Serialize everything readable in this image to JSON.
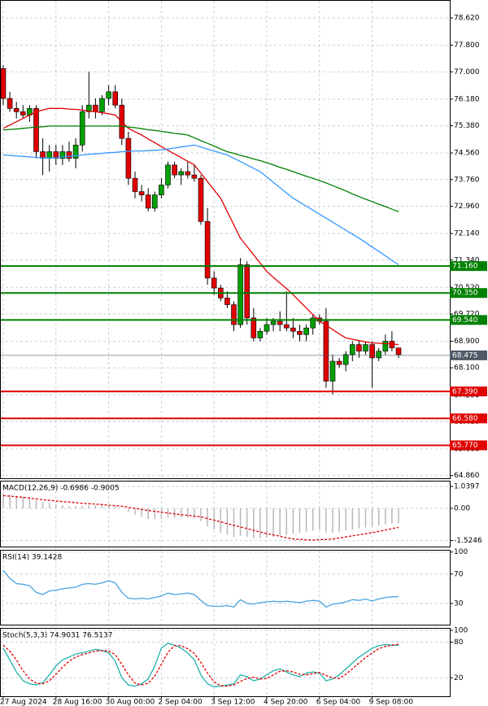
{
  "chart_data": [
    {
      "type": "candlestick",
      "open": [
        77.1,
        76.2,
        75.9,
        75.8,
        75.7,
        75.9,
        74.6,
        74.4,
        74.6,
        74.4,
        74.6,
        74.4,
        74.8,
        75.8,
        76.0,
        75.8,
        76.2,
        76.4,
        76.0,
        75.0,
        73.8,
        73.4,
        73.3,
        72.9,
        73.3,
        73.6,
        74.2,
        73.9,
        74.0,
        73.9,
        73.8,
        72.5,
        70.8,
        70.5,
        70.2,
        70.0,
        69.4,
        71.2,
        69.6,
        69.0,
        69.2,
        69.4,
        69.5,
        69.4,
        69.3,
        69.2,
        69.1,
        69.3,
        69.6,
        69.5,
        67.7,
        68.3,
        68.2,
        68.5,
        68.8,
        68.6,
        68.8,
        68.4,
        68.6,
        68.9,
        68.7
      ],
      "high": [
        77.2,
        76.4,
        76.1,
        76.0,
        76.0,
        76.0,
        75.0,
        74.8,
        74.8,
        74.8,
        74.9,
        75.0,
        76.0,
        77.0,
        76.2,
        76.3,
        76.6,
        76.6,
        76.2,
        75.2,
        74.0,
        73.6,
        73.5,
        73.4,
        73.8,
        74.3,
        74.3,
        74.1,
        74.3,
        74.2,
        73.9,
        72.9,
        71.0,
        70.6,
        70.4,
        70.1,
        71.4,
        71.3,
        69.9,
        69.3,
        69.6,
        69.6,
        69.8,
        70.4,
        69.6,
        69.4,
        69.4,
        69.7,
        69.7,
        69.9,
        68.5,
        68.4,
        68.6,
        68.9,
        68.9,
        68.9,
        68.9,
        68.7,
        69.1,
        69.2,
        68.7
      ],
      "low": [
        76.0,
        75.8,
        75.6,
        75.6,
        75.5,
        74.4,
        73.9,
        74.0,
        74.2,
        74.2,
        74.3,
        74.1,
        74.6,
        75.6,
        75.6,
        75.7,
        76.0,
        75.9,
        74.8,
        73.6,
        73.2,
        73.1,
        72.8,
        72.8,
        73.2,
        73.5,
        73.8,
        73.6,
        73.8,
        73.7,
        72.4,
        70.6,
        70.3,
        70.1,
        69.9,
        69.2,
        69.3,
        69.4,
        68.9,
        68.9,
        69.1,
        69.2,
        69.2,
        69.2,
        69.0,
        68.9,
        68.9,
        69.1,
        69.4,
        67.5,
        67.3,
        68.1,
        68.0,
        68.3,
        68.4,
        68.5,
        67.5,
        68.3,
        68.5,
        68.6,
        68.4
      ],
      "close": [
        76.2,
        75.9,
        75.8,
        75.7,
        75.9,
        74.6,
        74.4,
        74.6,
        74.4,
        74.6,
        74.4,
        74.8,
        75.8,
        76.0,
        75.8,
        76.2,
        76.4,
        76.0,
        75.0,
        73.8,
        73.4,
        73.3,
        72.9,
        73.3,
        73.6,
        74.2,
        73.9,
        74.0,
        73.9,
        73.8,
        72.5,
        70.8,
        70.5,
        70.2,
        70.0,
        69.4,
        71.2,
        69.6,
        69.0,
        69.2,
        69.4,
        69.5,
        69.4,
        69.3,
        69.2,
        69.1,
        69.3,
        69.6,
        69.5,
        67.7,
        68.3,
        68.2,
        68.5,
        68.8,
        68.6,
        68.8,
        68.4,
        68.6,
        68.9,
        68.7,
        68.5
      ],
      "up_color": "#00a000",
      "down_color": "#e00000",
      "series": [
        {
          "color": "#e00000",
          "values": [
            75.3,
            75.4,
            75.5,
            75.6,
            75.7,
            75.8,
            75.85,
            75.9,
            75.9,
            75.9,
            75.88,
            75.87,
            75.85,
            75.82,
            75.8,
            75.77,
            75.74,
            75.7,
            75.5,
            75.3,
            75.2,
            75.1,
            74.98,
            74.87,
            74.75,
            74.64,
            74.53,
            74.42,
            74.31,
            74.2,
            73.95,
            73.7,
            73.45,
            73.2,
            72.8,
            72.4,
            72.0,
            71.75,
            71.5,
            71.25,
            71.0,
            70.82,
            70.65,
            70.48,
            70.3,
            70.1,
            69.9,
            69.7,
            69.5,
            69.38,
            69.25,
            69.12,
            69.0,
            68.96,
            68.92,
            68.88,
            68.85,
            68.84,
            68.83,
            68.82,
            68.8
          ]
        },
        {
          "color": "#3399ff",
          "values": [
            74.5,
            74.49,
            74.47,
            74.46,
            74.44,
            74.43,
            74.41,
            74.4,
            74.42,
            74.44,
            74.46,
            74.48,
            74.5,
            74.52,
            74.53,
            74.55,
            74.57,
            74.58,
            74.6,
            74.61,
            74.62,
            74.62,
            74.63,
            74.64,
            74.65,
            74.68,
            74.71,
            74.74,
            74.77,
            74.8,
            74.74,
            74.68,
            74.62,
            74.56,
            74.5,
            74.4,
            74.3,
            74.2,
            74.1,
            74.0,
            73.84,
            73.68,
            73.52,
            73.36,
            73.2,
            73.08,
            72.96,
            72.84,
            72.72,
            72.6,
            72.48,
            72.36,
            72.24,
            72.12,
            72.0,
            71.87,
            71.73,
            71.6,
            71.47,
            71.33,
            71.2
          ]
        },
        {
          "color": "#008000",
          "values": [
            75.25,
            75.27,
            75.28,
            75.3,
            75.32,
            75.34,
            75.35,
            75.37,
            75.37,
            75.37,
            75.37,
            75.37,
            75.37,
            75.37,
            75.37,
            75.37,
            75.37,
            75.37,
            75.37,
            75.34,
            75.32,
            75.29,
            75.26,
            75.24,
            75.21,
            75.18,
            75.15,
            75.13,
            75.1,
            75.02,
            74.93,
            74.85,
            74.77,
            74.68,
            74.6,
            74.55,
            74.49,
            74.44,
            74.38,
            74.33,
            74.27,
            74.2,
            74.13,
            74.07,
            74.0,
            73.93,
            73.86,
            73.8,
            73.73,
            73.66,
            73.58,
            73.5,
            73.42,
            73.33,
            73.25,
            73.17,
            73.1,
            73.02,
            72.95,
            72.87,
            72.8
          ]
        }
      ],
      "ylim": [
        64.78,
        79.16
      ],
      "yticks": [
        {
          "value": 78.62,
          "label": "78.620"
        },
        {
          "value": 77.8,
          "label": "77.800"
        },
        {
          "value": 77.0,
          "label": "77.000"
        },
        {
          "value": 76.18,
          "label": "76.180"
        },
        {
          "value": 75.38,
          "label": "75.380"
        },
        {
          "value": 74.56,
          "label": "74.560"
        },
        {
          "value": 73.76,
          "label": "73.760"
        },
        {
          "value": 72.96,
          "label": "72.960"
        },
        {
          "value": 72.14,
          "label": "72.140"
        },
        {
          "value": 71.34,
          "label": "71.340"
        },
        {
          "value": 70.52,
          "label": "70.520"
        },
        {
          "value": 69.72,
          "label": "69.720"
        },
        {
          "value": 68.9,
          "label": "68.900"
        },
        {
          "value": 68.1,
          "label": "68.100"
        },
        {
          "value": 67.28,
          "label": "67.280"
        },
        {
          "value": 66.48,
          "label": "66.480"
        },
        {
          "value": 65.66,
          "label": "65.660"
        },
        {
          "value": 64.86,
          "label": "64.860"
        }
      ],
      "levels": [
        {
          "value": 71.16,
          "label": "71.160",
          "color": "#008000"
        },
        {
          "value": 70.35,
          "label": "70.350",
          "color": "#008000"
        },
        {
          "value": 69.54,
          "label": "69.540",
          "color": "#008000"
        },
        {
          "value": 67.39,
          "label": "67.390",
          "color": "#e00000"
        },
        {
          "value": 66.58,
          "label": "66.580",
          "color": "#e00000"
        },
        {
          "value": 65.77,
          "label": "65.770",
          "color": "#e00000"
        }
      ],
      "current": {
        "value": 68.475,
        "label": "68.475",
        "color": "#505a66"
      },
      "grid": true
    },
    {
      "type": "macd",
      "title": "MACD(12,26,9) -0.6986 -0.9005",
      "color": "#b8b8b8",
      "values": [
        0.7,
        0.65,
        0.6,
        0.55,
        0.5,
        0.4,
        0.3,
        0.25,
        0.2,
        0.15,
        0.1,
        0.1,
        0.12,
        0.15,
        0.15,
        0.15,
        0.15,
        0.1,
        0.0,
        -0.15,
        -0.3,
        -0.4,
        -0.5,
        -0.5,
        -0.5,
        -0.45,
        -0.45,
        -0.45,
        -0.45,
        -0.45,
        -0.6,
        -0.85,
        -1.0,
        -1.15,
        -1.25,
        -1.35,
        -1.3,
        -1.35,
        -1.4,
        -1.4,
        -1.4,
        -1.35,
        -1.3,
        -1.25,
        -1.2,
        -1.15,
        -1.1,
        -1.05,
        -1.0,
        -1.15,
        -1.15,
        -1.1,
        -1.05,
        -1.0,
        -0.95,
        -0.9,
        -0.85,
        -0.8,
        -0.75,
        -0.72,
        -0.6986
      ],
      "series": [
        {
          "color": "#e00000",
          "dash": true,
          "values": [
            0.6,
            0.58,
            0.55,
            0.52,
            0.49,
            0.45,
            0.41,
            0.38,
            0.35,
            0.32,
            0.3,
            0.27,
            0.24,
            0.22,
            0.2,
            0.18,
            0.15,
            0.13,
            0.1,
            0.05,
            0.0,
            -0.05,
            -0.1,
            -0.14,
            -0.18,
            -0.22,
            -0.26,
            -0.3,
            -0.33,
            -0.37,
            -0.4,
            -0.48,
            -0.56,
            -0.64,
            -0.72,
            -0.8,
            -0.88,
            -0.96,
            -1.04,
            -1.12,
            -1.2,
            -1.26,
            -1.32,
            -1.39,
            -1.45,
            -1.47,
            -1.49,
            -1.5,
            -1.48,
            -1.47,
            -1.45,
            -1.4,
            -1.35,
            -1.3,
            -1.25,
            -1.2,
            -1.15,
            -1.09,
            -1.03,
            -0.96,
            -0.9005
          ]
        }
      ],
      "ylim": [
        -1.81,
        1.31
      ],
      "yticks": [
        1.0397,
        {
          "value": 0,
          "label": "0.00"
        },
        -1.5246
      ],
      "grid": true
    },
    {
      "type": "line",
      "title": "RSI(14) 39.1428",
      "series": [
        {
          "color": "#4aa3df",
          "values": [
            75,
            64,
            57,
            56,
            54,
            45,
            42,
            47,
            48,
            50,
            51,
            52,
            56,
            57,
            56,
            58,
            61,
            58,
            45,
            37,
            36,
            37,
            36,
            38,
            40,
            44,
            42,
            43,
            44,
            42,
            34,
            27,
            26,
            26,
            27,
            25,
            35,
            30,
            29,
            31,
            32,
            33,
            32,
            33,
            32,
            31,
            33,
            34,
            33,
            25,
            29,
            30,
            32,
            35,
            34,
            36,
            33,
            36,
            38,
            39,
            39.1428
          ]
        }
      ],
      "ylim": [
        1,
        103
      ],
      "yticks": [
        100,
        70,
        30
      ],
      "grid": true
    },
    {
      "type": "line",
      "title": "Stoch(5,3,3) 74.9031 76.5137",
      "series": [
        {
          "color": "#20b2aa",
          "values": [
            70,
            50,
            30,
            15,
            10,
            8,
            12,
            25,
            40,
            50,
            55,
            60,
            62,
            65,
            68,
            66,
            62,
            48,
            20,
            8,
            6,
            10,
            18,
            40,
            70,
            78,
            75,
            70,
            62,
            50,
            25,
            10,
            5,
            6,
            8,
            10,
            25,
            22,
            15,
            18,
            25,
            32,
            35,
            30,
            25,
            22,
            28,
            30,
            28,
            15,
            18,
            25,
            35,
            45,
            55,
            62,
            70,
            74,
            76,
            75,
            74.9031
          ]
        },
        {
          "color": "#e00000",
          "dash": true,
          "values": [
            75,
            65,
            50,
            32,
            18,
            11,
            10,
            15,
            26,
            38,
            48,
            55,
            59,
            62,
            65,
            66,
            65,
            59,
            43,
            25,
            11,
            8,
            11,
            23,
            43,
            63,
            74,
            74,
            69,
            61,
            46,
            28,
            13,
            7,
            6,
            8,
            14,
            19,
            21,
            18,
            19,
            25,
            31,
            32,
            30,
            26,
            25,
            27,
            29,
            24,
            20,
            19,
            26,
            35,
            45,
            54,
            62,
            69,
            73,
            75,
            76.5137
          ]
        }
      ],
      "ylim": [
        -11,
        104
      ],
      "yticks": [
        100,
        80,
        20
      ],
      "grid": true,
      "xticks": [
        {
          "value": 0,
          "label": "27 Aug 2024"
        },
        {
          "value": 8,
          "label": "28 Aug 16:00"
        },
        {
          "value": 16,
          "label": "30 Aug 00:00"
        },
        {
          "value": 24,
          "label": "2 Sep 04:00"
        },
        {
          "value": 32,
          "label": "3 Sep 12:00"
        },
        {
          "value": 40,
          "label": "4 Sep 20:00"
        },
        {
          "value": 48,
          "label": "6 Sep 04:00"
        },
        {
          "value": 56,
          "label": "9 Sep 08:00"
        }
      ]
    }
  ]
}
